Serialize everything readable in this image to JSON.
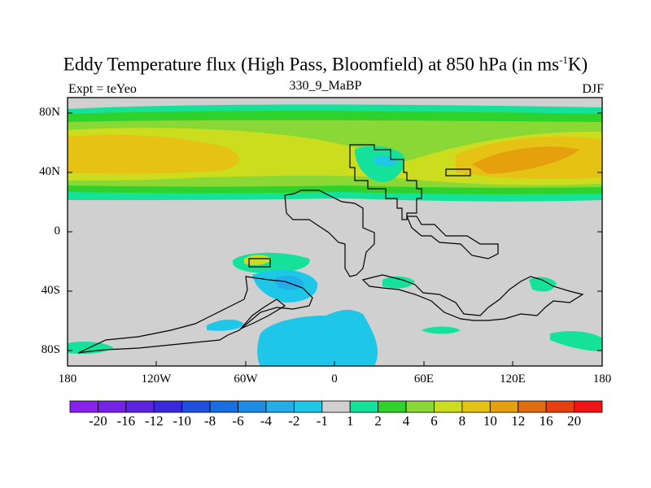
{
  "header": {
    "title_main": "Eddy Temperature flux (High Pass, Bloomfield) at 850 hPa (in ms",
    "title_sup": "-1",
    "title_end": "K)",
    "left_label": "Expt = teYeo",
    "center_label": "330_9_MaBP",
    "right_label": "DJF"
  },
  "axes": {
    "y_ticks": [
      "80N",
      "40N",
      "0",
      "40S",
      "80S"
    ],
    "x_ticks": [
      "180",
      "120W",
      "60W",
      "0",
      "60E",
      "120E",
      "180"
    ]
  },
  "colorbar": {
    "labels": [
      "-20",
      "-16",
      "-12",
      "-10",
      "-8",
      "-6",
      "-4",
      "-2",
      "-1",
      "1",
      "2",
      "4",
      "6",
      "8",
      "10",
      "12",
      "16",
      "20"
    ],
    "colors": [
      "#8a20f0",
      "#7422e8",
      "#5a24e0",
      "#3a28dc",
      "#1e50e0",
      "#1a6ee4",
      "#1c8ce6",
      "#22aee8",
      "#1ec6e8",
      "#d0d0d0",
      "#14e29a",
      "#2ed22a",
      "#8ad836",
      "#ccdc1e",
      "#e6c214",
      "#e6a00e",
      "#e06c0e",
      "#e6400e",
      "#f01414"
    ]
  },
  "palette": {
    "land_mask_gray": "#d0d0d0",
    "plus1": "#14e29a",
    "plus2": "#2ed22a",
    "plus4": "#8ad836",
    "plus6": "#ccdc1e",
    "plus8": "#e6c214",
    "plus10": "#e6a00e",
    "minus2": "#22aee8",
    "minus1": "#1ec6e8"
  }
}
